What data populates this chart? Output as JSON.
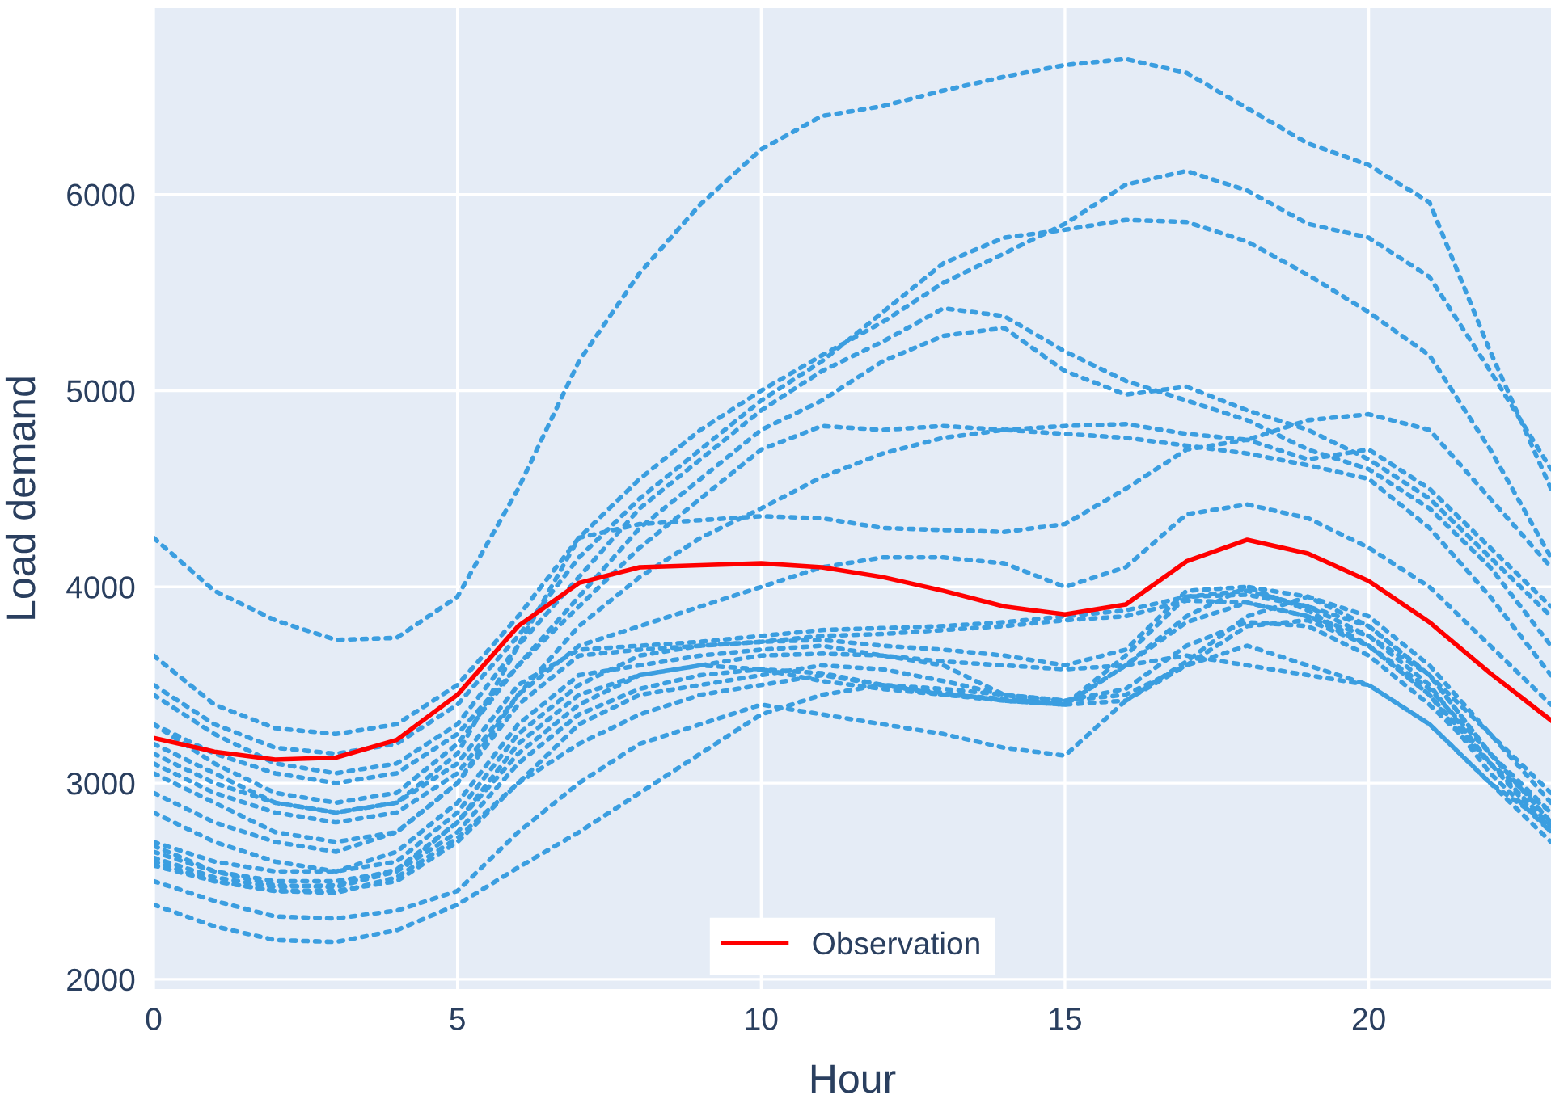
{
  "chart_data": {
    "type": "line",
    "xlabel": "Hour",
    "ylabel": "Load demand",
    "x": [
      0,
      1,
      2,
      3,
      4,
      5,
      6,
      7,
      8,
      9,
      10,
      11,
      12,
      13,
      14,
      15,
      16,
      17,
      18,
      19,
      20,
      21,
      22,
      23
    ],
    "xlim": [
      0,
      23
    ],
    "xticks": [
      0,
      5,
      10,
      15,
      20
    ],
    "ylim": [
      1950,
      6950
    ],
    "yticks": [
      2000,
      3000,
      4000,
      5000,
      6000
    ],
    "grid": true,
    "legend": "bottom",
    "line_style": "dotted",
    "series": [
      {
        "color": "#3b9ee0",
        "values": [
          4250,
          3980,
          3830,
          3730,
          3740,
          3950,
          4500,
          5150,
          5600,
          5950,
          6230,
          6400,
          6450,
          6530,
          6600,
          6660,
          6690,
          6620,
          6440,
          6260,
          6150,
          5960,
          5200,
          4500
        ]
      },
      {
        "color": "#3b9ee0",
        "values": [
          3650,
          3400,
          3280,
          3250,
          3300,
          3500,
          3850,
          4250,
          4550,
          4800,
          5000,
          5180,
          5350,
          5550,
          5700,
          5850,
          6050,
          6120,
          6020,
          5850,
          5780,
          5580,
          5100,
          4600
        ]
      },
      {
        "color": "#3b9ee0",
        "values": [
          3500,
          3300,
          3180,
          3150,
          3200,
          3400,
          3750,
          4150,
          4450,
          4700,
          4950,
          5150,
          5400,
          5650,
          5780,
          5820,
          5870,
          5860,
          5760,
          5590,
          5400,
          5180,
          4700,
          4150
        ]
      },
      {
        "color": "#3b9ee0",
        "values": [
          3450,
          3250,
          3100,
          3050,
          3100,
          3300,
          3700,
          4050,
          4400,
          4650,
          4900,
          5100,
          5250,
          5420,
          5380,
          5200,
          5050,
          4950,
          4850,
          4700,
          4600,
          4400,
          4100,
          3700
        ]
      },
      {
        "color": "#3b9ee0",
        "values": [
          3300,
          3150,
          3050,
          3000,
          3050,
          3250,
          3600,
          3950,
          4300,
          4550,
          4800,
          4950,
          5150,
          5280,
          5320,
          5100,
          4980,
          5020,
          4900,
          4800,
          4650,
          4450,
          4150,
          3850
        ]
      },
      {
        "color": "#3b9ee0",
        "values": [
          3300,
          3100,
          2950,
          2900,
          2950,
          3200,
          3600,
          3900,
          4200,
          4450,
          4700,
          4820,
          4800,
          4820,
          4800,
          4820,
          4830,
          4780,
          4750,
          4850,
          4880,
          4800,
          4450,
          4100
        ]
      },
      {
        "color": "#3b9ee0",
        "values": [
          3200,
          3050,
          2900,
          2850,
          2900,
          3150,
          3700,
          4250,
          4320,
          4340,
          4360,
          4350,
          4300,
          4290,
          4280,
          4320,
          4500,
          4700,
          4750,
          4650,
          4700,
          4500,
          4200,
          3900
        ]
      },
      {
        "color": "#3b9ee0",
        "values": [
          2950,
          2800,
          2700,
          2650,
          2750,
          3000,
          3450,
          3800,
          4050,
          4250,
          4400,
          4560,
          4680,
          4760,
          4800,
          4780,
          4760,
          4720,
          4680,
          4620,
          4550,
          4300,
          3950,
          3550
        ]
      },
      {
        "color": "#3b9ee0",
        "values": [
          3100,
          2950,
          2850,
          2800,
          2850,
          3050,
          3450,
          3700,
          3800,
          3900,
          4000,
          4100,
          4150,
          4150,
          4120,
          4000,
          4100,
          4370,
          4420,
          4350,
          4200,
          4000,
          3700,
          3400
        ]
      },
      {
        "color": "#3b9ee0",
        "values": [
          3150,
          3000,
          2900,
          2850,
          2900,
          3100,
          3500,
          3680,
          3700,
          3720,
          3750,
          3780,
          3790,
          3800,
          3820,
          3850,
          3880,
          3950,
          3980,
          3900,
          3750,
          3550,
          3250,
          2950
        ]
      },
      {
        "color": "#3b9ee0",
        "values": [
          3050,
          2900,
          2750,
          2700,
          2750,
          3000,
          3400,
          3650,
          3680,
          3700,
          3720,
          3730,
          3700,
          3680,
          3650,
          3600,
          3680,
          3980,
          4000,
          3880,
          3700,
          3480,
          3150,
          2850
        ]
      },
      {
        "color": "#3b9ee0",
        "values": [
          2850,
          2700,
          2600,
          2550,
          2650,
          2900,
          3300,
          3550,
          3600,
          3650,
          3680,
          3700,
          3650,
          3600,
          3450,
          3400,
          3650,
          3950,
          3960,
          3900,
          3800,
          3550,
          3150,
          2800
        ]
      },
      {
        "color": "#3b9ee0",
        "values": [
          2700,
          2600,
          2550,
          2550,
          2600,
          2850,
          3250,
          3500,
          3650,
          3700,
          3720,
          3750,
          3760,
          3780,
          3800,
          3830,
          3850,
          3930,
          3920,
          3850,
          3750,
          3500,
          3100,
          2750
        ]
      },
      {
        "color": "#3b9ee0",
        "values": [
          2680,
          2550,
          2500,
          2500,
          2550,
          2800,
          3200,
          3450,
          3550,
          3600,
          3650,
          3660,
          3650,
          3620,
          3600,
          3580,
          3600,
          3650,
          3600,
          3550,
          3500,
          3300,
          3000,
          2780
        ]
      },
      {
        "color": "#3b9ee0",
        "values": [
          2650,
          2550,
          2480,
          2470,
          2550,
          2750,
          3100,
          3350,
          3480,
          3550,
          3580,
          3560,
          3500,
          3460,
          3420,
          3400,
          3420,
          3600,
          3800,
          3830,
          3700,
          3450,
          3100,
          2780
        ]
      },
      {
        "color": "#3b9ee0",
        "values": [
          2600,
          2500,
          2450,
          2450,
          2500,
          2700,
          3000,
          3200,
          3350,
          3450,
          3500,
          3550,
          3500,
          3480,
          3450,
          3420,
          3450,
          3600,
          3700,
          3600,
          3500,
          3300,
          3000,
          2700
        ]
      },
      {
        "color": "#3b9ee0",
        "values": [
          2620,
          2520,
          2470,
          2480,
          2560,
          2800,
          3150,
          3400,
          3550,
          3600,
          3580,
          3520,
          3480,
          3450,
          3430,
          3400,
          3600,
          3820,
          3920,
          3850,
          3700,
          3450,
          3050,
          2750
        ]
      },
      {
        "color": "#3b9ee0",
        "values": [
          2580,
          2500,
          2450,
          2440,
          2520,
          2720,
          3000,
          3300,
          3450,
          3500,
          3550,
          3600,
          3580,
          3520,
          3450,
          3420,
          3480,
          3700,
          3820,
          3800,
          3650,
          3400,
          3100,
          2850
        ]
      },
      {
        "color": "#3b9ee0",
        "values": [
          2380,
          2270,
          2200,
          2190,
          2250,
          2380,
          2570,
          2750,
          2950,
          3150,
          3350,
          3450,
          3500,
          3450,
          3420,
          3400,
          3600,
          3850,
          4000,
          3950,
          3850,
          3600,
          3250,
          2900
        ]
      },
      {
        "color": "#3b9ee0",
        "values": [
          2500,
          2400,
          2320,
          2310,
          2350,
          2450,
          2750,
          3000,
          3200,
          3300,
          3400,
          3350,
          3300,
          3250,
          3180,
          3140,
          3420,
          3620,
          3850,
          3950,
          3800,
          3550,
          3150,
          2800
        ]
      },
      {
        "name": "Observation",
        "color": "#ff0000",
        "line_style": "solid",
        "values": [
          3230,
          3160,
          3120,
          3130,
          3220,
          3450,
          3800,
          4020,
          4100,
          4110,
          4120,
          4100,
          4050,
          3980,
          3900,
          3860,
          3910,
          4130,
          4240,
          4170,
          4030,
          3820,
          3560,
          3320
        ]
      }
    ]
  }
}
